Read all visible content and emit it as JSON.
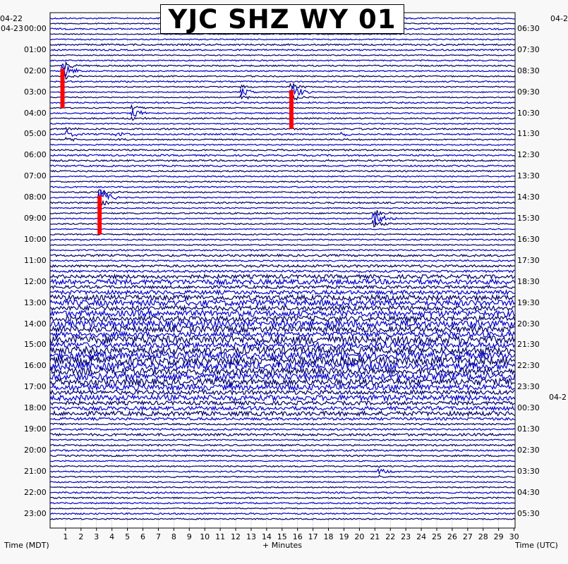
{
  "chart_data": {
    "type": "line",
    "title": "YJC SHZ WY 01",
    "xlabel": "+ Minutes",
    "left_axis_label": "Time (MDT)",
    "right_axis_label": "Time (UTC)",
    "xlim": [
      0,
      30
    ],
    "x_ticks": [
      1,
      2,
      3,
      4,
      5,
      6,
      7,
      8,
      9,
      10,
      11,
      12,
      13,
      14,
      15,
      16,
      17,
      18,
      19,
      20,
      21,
      22,
      23,
      24,
      25,
      26,
      27,
      28,
      29,
      30
    ],
    "left_date_top": "04-22",
    "left_date_start": "04-23",
    "right_date_top": "04-2",
    "right_date_mid": "04-2",
    "left_hour_labels": [
      "00:00",
      "01:00",
      "02:00",
      "03:00",
      "04:00",
      "05:00",
      "06:00",
      "07:00",
      "08:00",
      "09:00",
      "10:00",
      "11:00",
      "12:00",
      "13:00",
      "14:00",
      "15:00",
      "16:00",
      "17:00",
      "18:00",
      "19:00",
      "20:00",
      "21:00",
      "22:00",
      "23:00"
    ],
    "right_hour_labels": [
      "06:30",
      "07:30",
      "08:30",
      "09:30",
      "10:30",
      "11:30",
      "12:30",
      "13:30",
      "14:30",
      "15:30",
      "16:30",
      "17:30",
      "18:30",
      "19:30",
      "20:30",
      "21:30",
      "22:30",
      "23:30",
      "00:30",
      "01:30",
      "02:30",
      "03:30",
      "04:30",
      "05:30"
    ],
    "trace_colors": [
      "#0000cd",
      "#000066"
    ],
    "event_marker_color": "#ff0000",
    "grid": true,
    "events": [
      {
        "hour": 2,
        "minute": 0.8,
        "marker": true,
        "span_rows": 7,
        "amp": 1.0
      },
      {
        "hour": 3,
        "minute": 12.4,
        "marker": false,
        "amp": 0.5
      },
      {
        "hour": 3,
        "minute": 15.6,
        "marker": true,
        "span_rows": 7,
        "amp": 0.9
      },
      {
        "hour": 4,
        "minute": 5.3,
        "marker": false,
        "amp": 0.6
      },
      {
        "hour": 5,
        "minute": 4.3,
        "marker": false,
        "amp": 0.3
      },
      {
        "hour": 5,
        "minute": 18.8,
        "marker": false,
        "amp": 0.3
      },
      {
        "hour": 5,
        "minute": 1.1,
        "marker": false,
        "amp": 0.4
      },
      {
        "hour": 8,
        "minute": 3.2,
        "marker": true,
        "span_rows": 7,
        "amp": 1.0
      },
      {
        "hour": 9,
        "minute": 20.9,
        "marker": false,
        "amp": 0.9
      },
      {
        "hour": 21,
        "minute": 21.2,
        "marker": false,
        "amp": 0.3
      }
    ]
  }
}
